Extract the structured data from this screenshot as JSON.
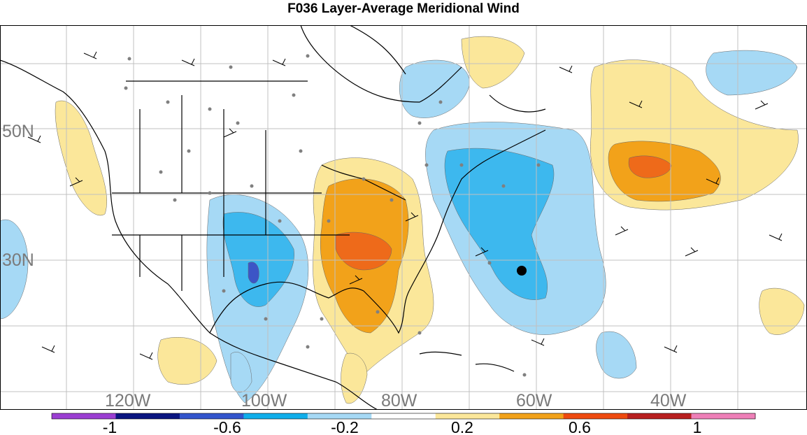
{
  "title": "F036 Layer-Average Meridional Wind",
  "map": {
    "lat_labels": [
      "50N",
      "30N"
    ],
    "lon_labels": [
      "120W",
      "100W",
      "80W",
      "60W",
      "40W"
    ],
    "colors": {
      "neg_strong": "#1e9ee6",
      "neg_mid": "#3db8ee",
      "neg_light": "#a6d9f5",
      "neg_darkest": "#3c55c6",
      "pos_light": "#fbe79a",
      "pos_mid": "#f2a21a",
      "pos_strong": "#ee6a1a",
      "pos_darkest": "#e23b13",
      "land_line": "#000000",
      "grid": "#c0c0c0",
      "obs_dot": "#808080"
    }
  },
  "colorbar": {
    "tick_labels": [
      "-1",
      "-0.6",
      "-0.2",
      "0.2",
      "0.6",
      "1"
    ],
    "segments": [
      "#9b3fd2",
      "#0a1580",
      "#3355cc",
      "#10aeea",
      "#a6d9f5",
      "#ffffff",
      "#fbe79a",
      "#f2a21a",
      "#ee4a10",
      "#b82020",
      "#ee80b8"
    ]
  }
}
